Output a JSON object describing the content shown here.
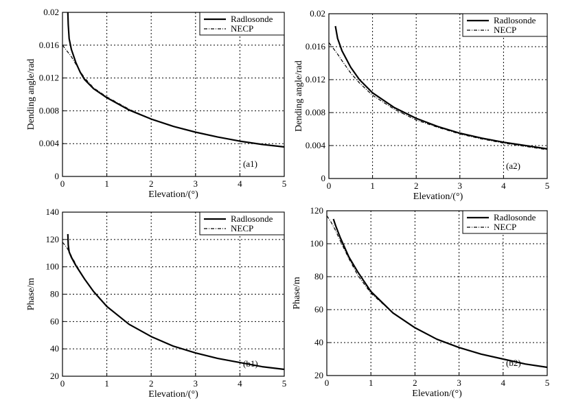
{
  "chart_data": [
    {
      "type": "line",
      "panel_label": "(a1)",
      "xlabel": "Elevation/(°)",
      "ylabel": "Dending angle/rad",
      "xlim": [
        0,
        5
      ],
      "ylim": [
        0,
        0.02
      ],
      "xticks": [
        "0",
        "1",
        "2",
        "3",
        "4",
        "5"
      ],
      "yticks": [
        "0",
        "0.004",
        "0.008",
        "0.012",
        "0.016",
        "0.02"
      ],
      "grid": true,
      "legend_position": "top-right",
      "series": [
        {
          "name": "Radlosonde",
          "style": "solid",
          "x": [
            0.12,
            0.13,
            0.15,
            0.2,
            0.3,
            0.4,
            0.5,
            0.7,
            1.0,
            1.5,
            2.0,
            2.5,
            3.0,
            3.5,
            4.0,
            4.5,
            5.0
          ],
          "y": [
            0.02,
            0.0185,
            0.0168,
            0.0155,
            0.0139,
            0.0127,
            0.0118,
            0.0107,
            0.0096,
            0.0081,
            0.007,
            0.0061,
            0.0054,
            0.0048,
            0.0043,
            0.0039,
            0.0036
          ]
        },
        {
          "name": "NECP",
          "style": "dashdot",
          "x": [
            0.0,
            0.1,
            0.2,
            0.3,
            0.4,
            0.5,
            0.7,
            1.0,
            1.5,
            2.0,
            2.5,
            3.0,
            3.5,
            4.0,
            4.5,
            5.0
          ],
          "y": [
            0.016,
            0.0153,
            0.0146,
            0.0137,
            0.0128,
            0.012,
            0.0108,
            0.0097,
            0.0082,
            0.007,
            0.0061,
            0.0054,
            0.0048,
            0.0043,
            0.0039,
            0.0036
          ]
        }
      ]
    },
    {
      "type": "line",
      "panel_label": "(a2)",
      "xlabel": "Elevation/(°)",
      "ylabel": "Dending angle/rad",
      "xlim": [
        0,
        5
      ],
      "ylim": [
        0,
        0.02
      ],
      "xticks": [
        "0",
        "1",
        "2",
        "3",
        "4",
        "5"
      ],
      "yticks": [
        "0",
        "0.004",
        "0.008",
        "0.012",
        "0.016",
        "0.02"
      ],
      "grid": true,
      "legend_position": "top-right",
      "series": [
        {
          "name": "Radlosonde",
          "style": "solid",
          "x": [
            0.15,
            0.2,
            0.3,
            0.5,
            0.7,
            1.0,
            1.5,
            2.0,
            2.5,
            3.0,
            3.5,
            4.0,
            4.5,
            5.0
          ],
          "y": [
            0.0185,
            0.017,
            0.0155,
            0.0135,
            0.012,
            0.0104,
            0.0086,
            0.0073,
            0.0063,
            0.0055,
            0.0049,
            0.0044,
            0.004,
            0.0036
          ]
        },
        {
          "name": "NECP",
          "style": "dashdot",
          "x": [
            0.0,
            0.1,
            0.2,
            0.3,
            0.5,
            0.7,
            1.0,
            1.5,
            2.0,
            2.5,
            3.0,
            3.5,
            4.0,
            4.5,
            5.0
          ],
          "y": [
            0.0165,
            0.0158,
            0.0151,
            0.0143,
            0.0128,
            0.0116,
            0.0101,
            0.0084,
            0.0071,
            0.0062,
            0.0054,
            0.0048,
            0.0043,
            0.0039,
            0.0035
          ]
        }
      ]
    },
    {
      "type": "line",
      "panel_label": "(b1)",
      "xlabel": "Elevation/(°)",
      "ylabel": "Phase/m",
      "xlim": [
        0,
        5
      ],
      "ylim": [
        20,
        140
      ],
      "xticks": [
        "0",
        "1",
        "2",
        "3",
        "4",
        "5"
      ],
      "yticks": [
        "20",
        "40",
        "60",
        "80",
        "100",
        "120",
        "140"
      ],
      "grid": true,
      "legend_position": "top-right",
      "series": [
        {
          "name": "Radlosonde",
          "style": "solid",
          "x": [
            0.12,
            0.13,
            0.15,
            0.2,
            0.3,
            0.5,
            0.7,
            1.0,
            1.5,
            2.0,
            2.5,
            3.0,
            3.5,
            4.0,
            4.5,
            5.0
          ],
          "y": [
            124,
            116,
            111,
            107,
            101,
            91,
            82,
            71,
            58,
            49,
            42,
            37,
            33,
            30,
            27,
            25
          ]
        },
        {
          "name": "NECP",
          "style": "dashdot",
          "x": [
            0.0,
            0.1,
            0.2,
            0.3,
            0.5,
            0.7,
            1.0,
            1.5,
            2.0,
            2.5,
            3.0,
            3.5,
            4.0,
            4.5,
            5.0
          ],
          "y": [
            118,
            114,
            108,
            102,
            91,
            82,
            71,
            58,
            49,
            42,
            37,
            33,
            30,
            27,
            25
          ]
        }
      ]
    },
    {
      "type": "line",
      "panel_label": "(b2)",
      "xlabel": "Elevation/(°)",
      "ylabel": "Phase/m",
      "xlim": [
        0,
        5
      ],
      "ylim": [
        20,
        120
      ],
      "xticks": [
        "0",
        "1",
        "2",
        "3",
        "4",
        "5"
      ],
      "yticks": [
        "20",
        "40",
        "60",
        "80",
        "100",
        "120"
      ],
      "grid": true,
      "legend_position": "top-right",
      "series": [
        {
          "name": "Radlosonde",
          "style": "solid",
          "x": [
            0.15,
            0.2,
            0.3,
            0.5,
            0.7,
            1.0,
            1.5,
            2.0,
            2.5,
            3.0,
            3.5,
            4.0,
            4.5,
            5.0
          ],
          "y": [
            115,
            111,
            104,
            92,
            83,
            71,
            58,
            49,
            42,
            37,
            33,
            30,
            27,
            25
          ]
        },
        {
          "name": "NECP",
          "style": "dashdot",
          "x": [
            0.0,
            0.1,
            0.2,
            0.3,
            0.5,
            0.7,
            1.0,
            1.5,
            2.0,
            2.5,
            3.0,
            3.5,
            4.0,
            4.5,
            5.0
          ],
          "y": [
            117,
            113,
            108,
            102,
            91,
            81,
            70,
            58,
            49,
            42,
            37,
            33,
            30,
            27,
            25
          ]
        }
      ]
    }
  ]
}
